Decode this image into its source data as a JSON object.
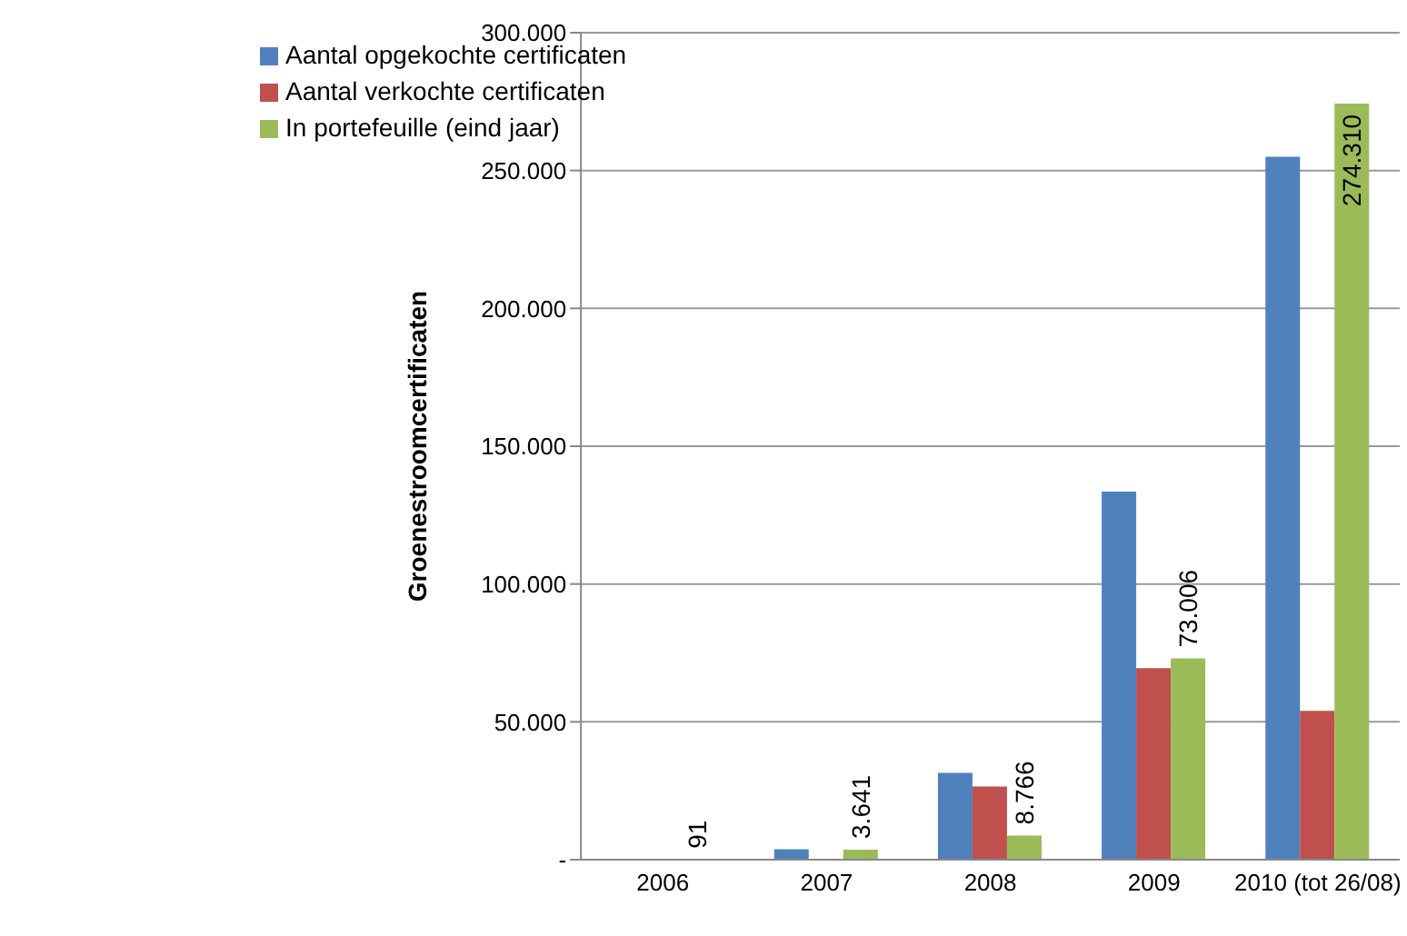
{
  "chart_data": {
    "type": "bar",
    "ylabel": "Groenestroomcertificaten",
    "categories": [
      "2006",
      "2007",
      "2008",
      "2009",
      "2010 (tot 26/08)"
    ],
    "series": [
      {
        "name": "Aantal opgekochte certificaten",
        "color": "#4f81bd",
        "values": [
          300,
          3800,
          31500,
          133500,
          255000
        ]
      },
      {
        "name": "Aantal verkochte certificaten",
        "color": "#c0504d",
        "values": [
          0,
          0,
          26500,
          69500,
          54000
        ]
      },
      {
        "name": "In portefeuille (eind jaar)",
        "color": "#9bbb59",
        "values": [
          91,
          3641,
          8766,
          73006,
          274310
        ],
        "value_labels": [
          "91",
          "3.641",
          "8.766",
          "73.006",
          "274.310"
        ]
      }
    ],
    "ylim": [
      0,
      300000
    ],
    "yticks": [
      {
        "value": 0,
        "label": "-"
      },
      {
        "value": 50000,
        "label": "50.000"
      },
      {
        "value": 100000,
        "label": "100.000"
      },
      {
        "value": 150000,
        "label": "150.000"
      },
      {
        "value": 200000,
        "label": "200.000"
      },
      {
        "value": 250000,
        "label": "250.000"
      },
      {
        "value": 300000,
        "label": "300.000"
      }
    ],
    "grid": "y",
    "legend": "top left"
  }
}
